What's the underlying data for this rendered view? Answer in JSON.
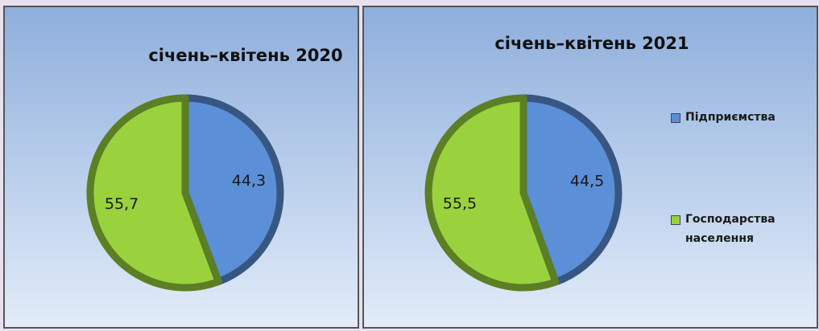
{
  "chart_data": [
    {
      "type": "pie",
      "title": "січень–квітень 2020",
      "values": [
        44.3,
        55.7
      ],
      "value_labels": [
        "44,3",
        "55,7"
      ],
      "colors": [
        "#5b8fd8",
        "#9ad23e"
      ]
    },
    {
      "type": "pie",
      "title": "січень–квітень 2021",
      "categories": [
        "Підприємства",
        "Господарства населення"
      ],
      "values": [
        44.5,
        55.5
      ],
      "value_labels": [
        "44,5",
        "55,5"
      ],
      "colors": [
        "#5b8fd8",
        "#9ad23e"
      ],
      "legend": "right"
    }
  ]
}
